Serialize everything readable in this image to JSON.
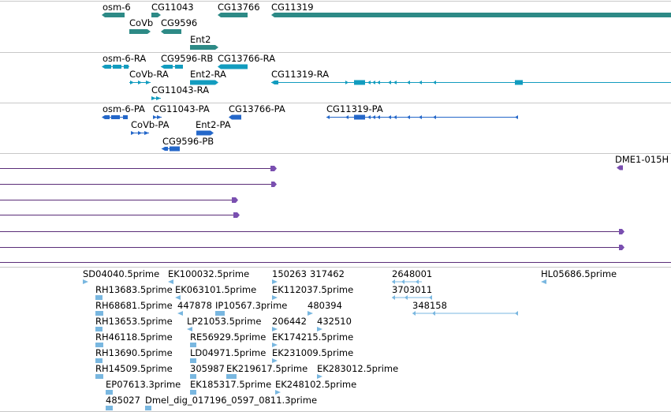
{
  "colors": {
    "gene": "#2d8a86",
    "rna": "#129cbf",
    "protein": "#2467c9",
    "alignment": "#7a4fb0",
    "alignment_line": "#5a2d78",
    "est": "#79b7e0",
    "separator": "#c8c8c8"
  },
  "gene_track": {
    "labels": [
      "osm-6",
      "CG11043",
      "CG13766",
      "CG11319",
      "CoVb",
      "CG9596",
      "Ent2"
    ]
  },
  "transcript_track": {
    "labels": [
      "osm-6-RA",
      "CG9596-RB",
      "CG13766-RA",
      "CoVb-RA",
      "Ent2-RA",
      "CG11319-RA",
      "CG11043-RA"
    ]
  },
  "protein_track": {
    "labels": [
      "osm-6-PA",
      "CG11043-PA",
      "CG13766-PA",
      "CG11319-PA",
      "CoVb-PA",
      "Ent2-PA",
      "CG9596-PB"
    ]
  },
  "alignment_track": {
    "labels": [
      "DME1-015H"
    ]
  },
  "est_track": {
    "labels": [
      "SD04040.5prime",
      "EK100032.5prime",
      "150263",
      "317462",
      "2648001",
      "HL05686.5prime",
      "RH13683.5prime",
      "EK063101.5prime",
      "EK112037.5prime",
      "3703011",
      "RH68681.5prime",
      "447878",
      "IP10567.3prime",
      "480394",
      "348158",
      "RH13653.5prime",
      "LP21053.5prime",
      "206442",
      "432510",
      "RH46118.5prime",
      "RE56929.5prime",
      "EK174215.5prime",
      "RH13690.5prime",
      "LD04971.5prime",
      "EK231009.5prime",
      "RH14509.5prime",
      "305987",
      "EK219617.5prime",
      "EK283012.5prime",
      "EP07613.3prime",
      "EK185317.5prime",
      "EK248102.5prime",
      "485027",
      "Dmel_dig_017196_0597_0811.3prime"
    ]
  }
}
